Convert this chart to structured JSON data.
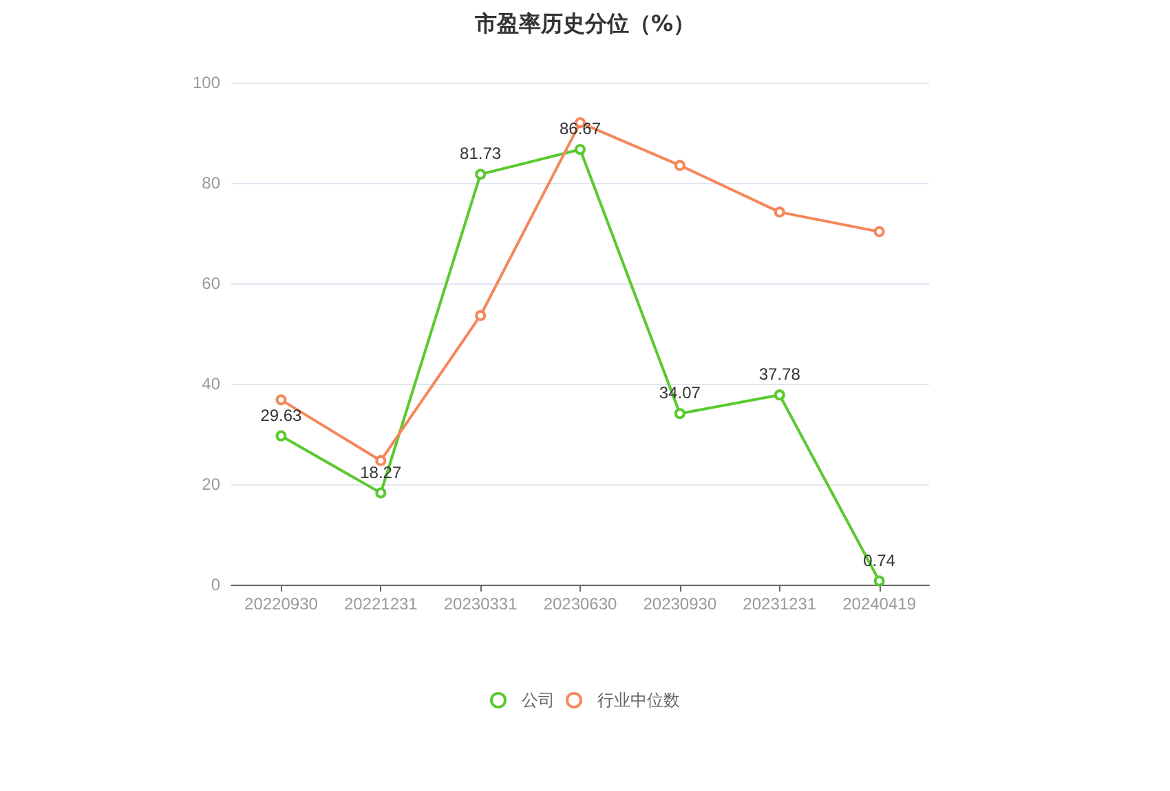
{
  "chart_data": {
    "type": "line",
    "title": "市盈率历史分位（%）",
    "categories": [
      "20220930",
      "20221231",
      "20230331",
      "20230630",
      "20230930",
      "20231231",
      "20240419"
    ],
    "series": [
      {
        "name": "公司",
        "color": "#5ac92e",
        "values": [
          29.63,
          18.27,
          81.73,
          86.67,
          34.07,
          37.78,
          0.74
        ],
        "value_labels": [
          "29.63",
          "18.27",
          "81.73",
          "86.67",
          "34.07",
          "37.78",
          "0.74"
        ]
      },
      {
        "name": "行业中位数",
        "color": "#f5875a",
        "values": [
          36.8,
          24.7,
          53.6,
          92.0,
          83.5,
          74.2,
          70.3
        ]
      }
    ],
    "ylim": [
      0,
      100
    ],
    "yticks": [
      0,
      20,
      40,
      60,
      80,
      100
    ],
    "grid": "y",
    "legend": "bottom",
    "marker": "circle",
    "line_style": "solid"
  }
}
